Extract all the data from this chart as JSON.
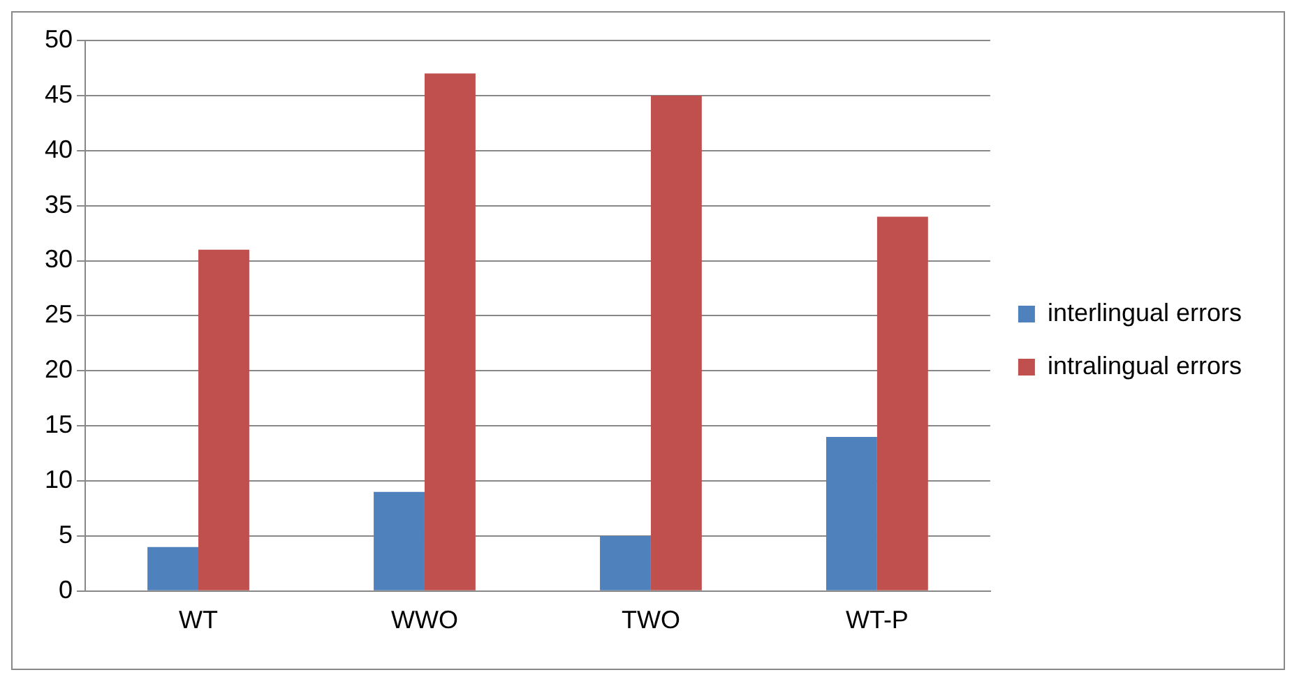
{
  "chart_data": {
    "type": "bar",
    "categories": [
      "WT",
      "WWO",
      "TWO",
      "WT-P"
    ],
    "series": [
      {
        "name": "interlingual errors",
        "color": "#4f81bd",
        "values": [
          4,
          9,
          5,
          14
        ]
      },
      {
        "name": "intralingual errors",
        "color": "#c0504d",
        "values": [
          31,
          47,
          45,
          34
        ]
      }
    ],
    "ylim": [
      0,
      50
    ],
    "yticks": [
      0,
      5,
      10,
      15,
      20,
      25,
      30,
      35,
      40,
      45,
      50
    ],
    "grid": "y",
    "legend": "right"
  }
}
